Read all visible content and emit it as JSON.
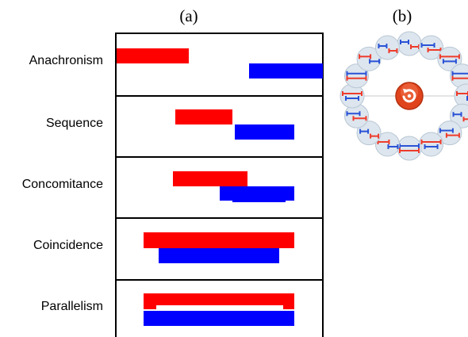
{
  "panels": {
    "a_label": "(a)",
    "b_label": "(b)"
  },
  "relations": [
    {
      "label": "Anachronism"
    },
    {
      "label": "Sequence"
    },
    {
      "label": "Concomitance"
    },
    {
      "label": "Coincidence"
    },
    {
      "label": "Parallelism"
    }
  ],
  "colors": {
    "red": "#ff0000",
    "blue": "#0000ff",
    "frame": "#000000",
    "text": "#000000",
    "bubble_fill": "#dde6ee",
    "bubble_stroke": "#b8c6d3",
    "ring_line": "#c9c9c9",
    "center_button": "#e0441c",
    "center_button_dark": "#b5300f",
    "mini_red": "#ee3b2b",
    "mini_blue": "#2a52d6"
  },
  "icons": {
    "center_button": "refresh-icon"
  }
}
